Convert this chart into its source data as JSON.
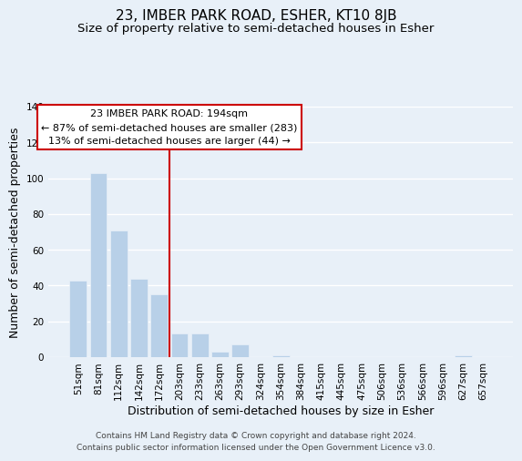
{
  "title": "23, IMBER PARK ROAD, ESHER, KT10 8JB",
  "subtitle": "Size of property relative to semi-detached houses in Esher",
  "xlabel": "Distribution of semi-detached houses by size in Esher",
  "ylabel": "Number of semi-detached properties",
  "bar_labels": [
    "51sqm",
    "81sqm",
    "112sqm",
    "142sqm",
    "172sqm",
    "203sqm",
    "233sqm",
    "263sqm",
    "293sqm",
    "324sqm",
    "354sqm",
    "384sqm",
    "415sqm",
    "445sqm",
    "475sqm",
    "506sqm",
    "536sqm",
    "566sqm",
    "596sqm",
    "627sqm",
    "657sqm"
  ],
  "bar_values": [
    43,
    103,
    71,
    44,
    35,
    13,
    13,
    3,
    7,
    0,
    1,
    0,
    0,
    0,
    0,
    0,
    0,
    0,
    0,
    1,
    0
  ],
  "bar_color": "#b8d0e8",
  "vline_color": "#cc0000",
  "vline_x_index": 4,
  "ylim": [
    0,
    140
  ],
  "yticks": [
    0,
    20,
    40,
    60,
    80,
    100,
    120,
    140
  ],
  "annotation_title": "23 IMBER PARK ROAD: 194sqm",
  "annotation_line1": "← 87% of semi-detached houses are smaller (283)",
  "annotation_line2": "13% of semi-detached houses are larger (44) →",
  "footer1": "Contains HM Land Registry data © Crown copyright and database right 2024.",
  "footer2": "Contains public sector information licensed under the Open Government Licence v3.0.",
  "background_color": "#e8f0f8",
  "grid_color": "#ffffff",
  "title_fontsize": 11,
  "subtitle_fontsize": 9.5,
  "axis_label_fontsize": 9,
  "tick_fontsize": 7.5,
  "footer_fontsize": 6.5,
  "ann_fontsize": 8
}
